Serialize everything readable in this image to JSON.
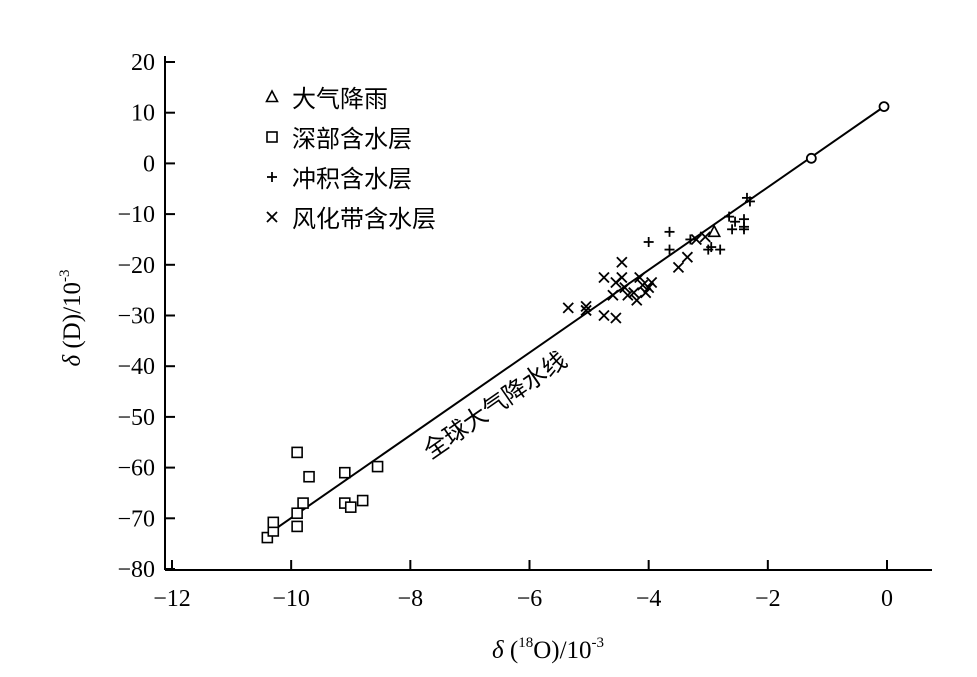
{
  "chart_data": {
    "type": "scatter",
    "title": "",
    "xlabel": "δ (18O)/10-3",
    "xlabel_parts": {
      "delta": "δ",
      "open": " (",
      "sup": "18",
      "mid": "O)/10",
      "exp": "-3"
    },
    "ylabel": "δ (D)/10-3",
    "ylabel_parts": {
      "delta": "δ",
      "mid": " (D)/10",
      "exp": "-3"
    },
    "xlim": [
      -12,
      0.7
    ],
    "ylim": [
      -80,
      22
    ],
    "xticks": [
      -12,
      -10,
      -8,
      -6,
      -4,
      -2,
      0
    ],
    "xtick_labels": [
      "−12",
      "−10",
      "−8",
      "−6",
      "−4",
      "−2",
      "0"
    ],
    "yticks": [
      -80,
      -70,
      -60,
      -50,
      -40,
      -30,
      -20,
      -10,
      0,
      10,
      20
    ],
    "ytick_labels": [
      "−80",
      "−70",
      "−60",
      "−50",
      "−40",
      "−30",
      "−20",
      "−10",
      "0",
      "10",
      "20"
    ],
    "grid": false,
    "legend_position": "top-left",
    "reference_line": {
      "label": "全球大气降水线",
      "from": [
        -10.4,
        -73.2
      ],
      "to": [
        -0.05,
        11.2
      ],
      "endpoints": [
        [
          -1.27,
          1.0
        ],
        [
          -0.05,
          11.2
        ]
      ]
    },
    "series": [
      {
        "name": "大气降雨",
        "marker": "triangle",
        "points": [
          [
            -2.9,
            -13.5
          ]
        ]
      },
      {
        "name": "深部含水层",
        "marker": "square",
        "points": [
          [
            -10.4,
            -73.8
          ],
          [
            -10.3,
            -72.5
          ],
          [
            -10.3,
            -70.8
          ],
          [
            -9.9,
            -71.6
          ],
          [
            -9.9,
            -69.0
          ],
          [
            -9.9,
            -57.0
          ],
          [
            -9.8,
            -67.0
          ],
          [
            -9.7,
            -61.8
          ],
          [
            -9.1,
            -61.0
          ],
          [
            -9.1,
            -67.0
          ],
          [
            -9.0,
            -67.8
          ],
          [
            -8.8,
            -66.5
          ],
          [
            -8.55,
            -59.8
          ]
        ]
      },
      {
        "name": "冲积含水层",
        "marker": "plus",
        "points": [
          [
            -4.0,
            -15.5
          ],
          [
            -3.65,
            -13.5
          ],
          [
            -3.65,
            -17.0
          ],
          [
            -3.3,
            -15.0
          ],
          [
            -3.0,
            -17.0
          ],
          [
            -2.95,
            -16.5
          ],
          [
            -2.8,
            -17.0
          ],
          [
            -2.65,
            -10.5
          ],
          [
            -2.6,
            -13.0
          ],
          [
            -2.55,
            -11.5
          ],
          [
            -2.4,
            -11.0
          ],
          [
            -2.4,
            -12.5
          ],
          [
            -2.4,
            -13.0
          ],
          [
            -2.3,
            -7.5
          ],
          [
            -2.35,
            -6.8
          ]
        ]
      },
      {
        "name": "风化带含水层",
        "marker": "cross",
        "points": [
          [
            -5.35,
            -28.5
          ],
          [
            -5.05,
            -28.2
          ],
          [
            -5.05,
            -29.0
          ],
          [
            -4.75,
            -22.5
          ],
          [
            -4.75,
            -30.0
          ],
          [
            -4.6,
            -26.0
          ],
          [
            -4.55,
            -30.5
          ],
          [
            -4.55,
            -23.5
          ],
          [
            -4.45,
            -19.5
          ],
          [
            -4.45,
            -22.5
          ],
          [
            -4.4,
            -24.5
          ],
          [
            -4.35,
            -26.0
          ],
          [
            -4.25,
            -25.5
          ],
          [
            -4.2,
            -27.0
          ],
          [
            -4.15,
            -22.5
          ],
          [
            -4.1,
            -24.0
          ],
          [
            -4.05,
            -25.5
          ],
          [
            -4.0,
            -24.5
          ],
          [
            -3.95,
            -23.5
          ],
          [
            -3.5,
            -20.5
          ],
          [
            -3.35,
            -18.5
          ],
          [
            -3.2,
            -15.0
          ],
          [
            -3.05,
            -14.5
          ]
        ]
      }
    ]
  }
}
